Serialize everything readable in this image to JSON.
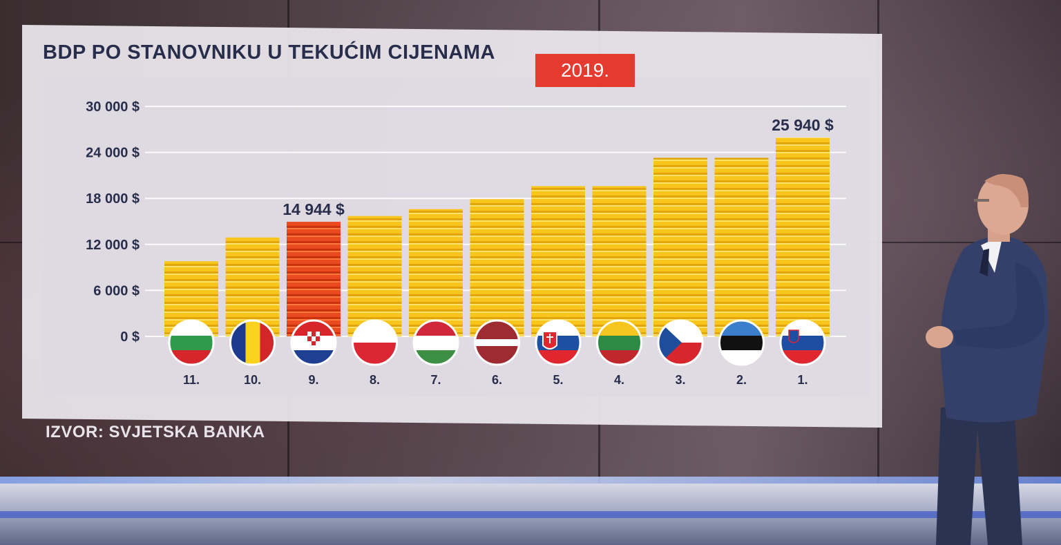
{
  "title": "BDP PO STANOVNIKU U TEKUĆIM CIJENAMA",
  "year_badge": "2019.",
  "source": "IZVOR: SVJETSKA BANKA",
  "colors": {
    "bar_gold": "#f6c21a",
    "bar_highlight": "#ea4a1f",
    "badge_red": "#e53a2f",
    "text_navy": "#272d4a"
  },
  "chart_data": {
    "type": "bar",
    "title": "BDP PO STANOVNIKU U TEKUĆIM CIJENAMA",
    "ylim": [
      0,
      30000
    ],
    "y_ticks": [
      {
        "value": 0,
        "label": "0 $"
      },
      {
        "value": 6000,
        "label": "6 000 $"
      },
      {
        "value": 12000,
        "label": "12 000 $"
      },
      {
        "value": 18000,
        "label": "18 000 $"
      },
      {
        "value": 24000,
        "label": "24 000 $"
      },
      {
        "value": 30000,
        "label": "30 000 $"
      }
    ],
    "grid": true,
    "categories": [
      "11.",
      "10.",
      "9.",
      "8.",
      "7.",
      "6.",
      "5.",
      "4.",
      "3.",
      "2.",
      "1."
    ],
    "flags": [
      "bulgaria-flag",
      "romania-flag",
      "croatia-flag",
      "poland-flag",
      "hungary-flag",
      "latvia-flag",
      "slovakia-flag",
      "lithuania-flag",
      "czechia-flag",
      "estonia-flag",
      "slovenia-flag"
    ],
    "values": [
      9800,
      12900,
      14944,
      15700,
      16600,
      17900,
      19600,
      19600,
      23300,
      23300,
      25940
    ],
    "highlight_index": 2,
    "data_labels": [
      {
        "index": 2,
        "text": "14 944 $"
      },
      {
        "index": 10,
        "text": "25 940 $"
      }
    ]
  }
}
